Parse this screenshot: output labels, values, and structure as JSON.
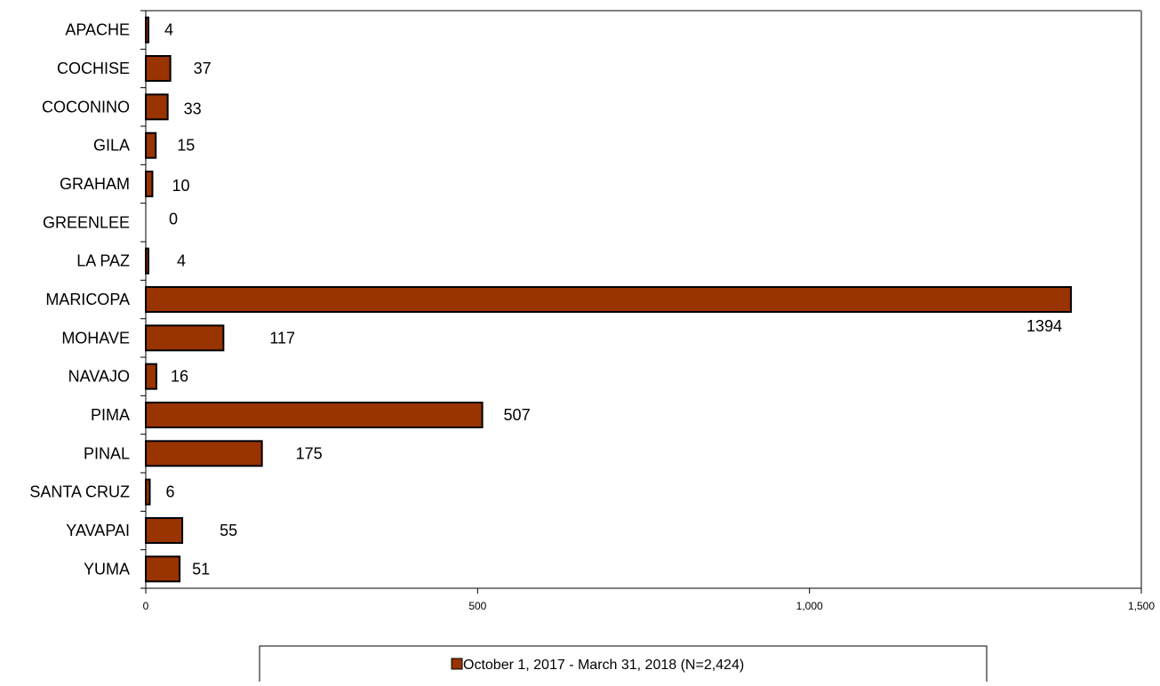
{
  "chart_data": {
    "type": "bar",
    "orientation": "horizontal",
    "categories": [
      "APACHE",
      "COCHISE",
      "COCONINO",
      "GILA",
      "GRAHAM",
      "GREENLEE",
      "LA PAZ",
      "MARICOPA",
      "MOHAVE",
      "NAVAJO",
      "PIMA",
      "PINAL",
      "SANTA CRUZ",
      "YAVAPAI",
      "YUMA"
    ],
    "series": [
      {
        "name": "October 1, 2017 - March 31, 2018 (N=2,424)",
        "values": [
          4,
          37,
          33,
          15,
          10,
          0,
          4,
          1394,
          117,
          16,
          507,
          175,
          6,
          55,
          51
        ],
        "data_labels": [
          "4",
          "37",
          "33",
          "15",
          "10",
          "0",
          "4",
          "1394",
          "117",
          "16",
          "507",
          "175",
          "6",
          "55",
          "51"
        ],
        "color": "#993300",
        "edge_color": "#000000"
      }
    ],
    "xlim": [
      0,
      1500
    ],
    "x_ticks": [
      0,
      500,
      1000,
      1500
    ],
    "x_tick_labels": [
      "0",
      "500",
      "1,000",
      "1,500"
    ],
    "grid": false,
    "legend_position": "bottom",
    "title": "",
    "xlabel": "",
    "ylabel": ""
  }
}
